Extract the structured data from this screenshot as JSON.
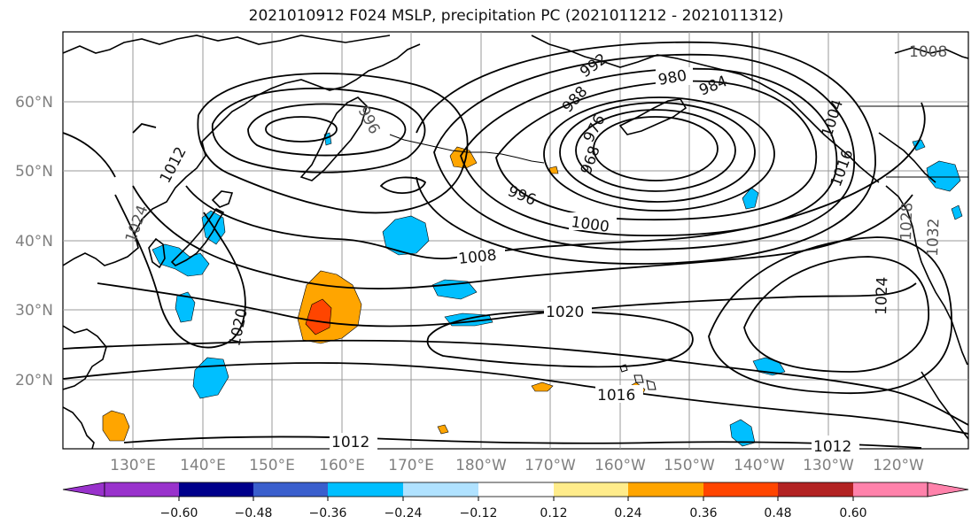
{
  "title": "2021010912 F024 MSLP, precipitation PC (2021011212 - 2021011312)",
  "latitude_labels": [
    "60°N",
    "50°N",
    "40°N",
    "30°N",
    "20°N"
  ],
  "longitude_labels": [
    "130°E",
    "140°E",
    "150°E",
    "160°E",
    "170°E",
    "180°W",
    "170°W",
    "160°W",
    "150°W",
    "140°W",
    "130°W",
    "120°W"
  ],
  "colorbar": {
    "ticks": [
      "−0.60",
      "−0.48",
      "−0.36",
      "−0.24",
      "−0.12",
      "0.12",
      "0.24",
      "0.36",
      "0.48",
      "0.60"
    ],
    "colors": [
      "#9932cc",
      "#00008b",
      "#3a5fcd",
      "#00bfff",
      "#b0e2ff",
      "#ffffff",
      "#ffec8b",
      "#ffa500",
      "#ff4500",
      "#b22222",
      "#ff82ab"
    ]
  },
  "isobar_labels": {
    "l1012": "1012",
    "l1012b": "1012",
    "l1016": "1016",
    "l1020": "1020",
    "l1020b": "1020",
    "l1024": "1024",
    "l1024b": "1024",
    "l1008": "1008",
    "l1008b": "1008",
    "l1000": "1000",
    "l996": "996",
    "l996b": "996",
    "l984": "984",
    "l980": "980",
    "l976": "976",
    "l968": "968",
    "l988": "988",
    "l992": "992",
    "l1004": "1004",
    "l1012c": "1012",
    "l1028": "1028",
    "l1032": "1032",
    "l1016b": "1016"
  }
}
